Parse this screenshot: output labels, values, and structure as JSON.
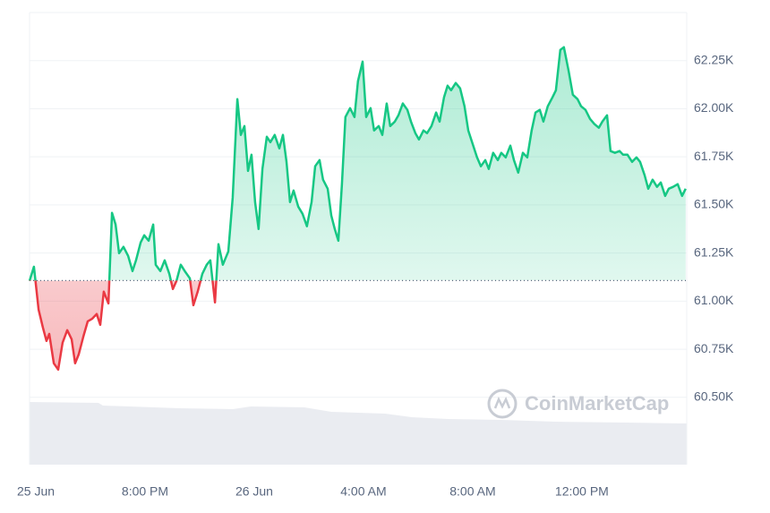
{
  "chart_data": {
    "type": "line",
    "watermark": "CoinMarketCap",
    "baseline": 61107,
    "up_color": "#16c784",
    "down_color": "#ea3943",
    "xlim": [
      -0.23,
      23.84
    ],
    "xticks": [
      {
        "value": 0,
        "label": "25 Jun"
      },
      {
        "value": 4,
        "label": "8:00 PM"
      },
      {
        "value": 8,
        "label": "26 Jun"
      },
      {
        "value": 12,
        "label": "4:00 AM"
      },
      {
        "value": 16,
        "label": "8:00 AM"
      },
      {
        "value": 20,
        "label": "12:00 PM"
      }
    ],
    "ylim": [
      60150,
      62500
    ],
    "yticks": [
      {
        "value": 60500,
        "label": "60.50K"
      },
      {
        "value": 60750,
        "label": "60.75K"
      },
      {
        "value": 61000,
        "label": "61.00K"
      },
      {
        "value": 61250,
        "label": "61.25K"
      },
      {
        "value": 61500,
        "label": "61.50K"
      },
      {
        "value": 61750,
        "label": "61.75K"
      },
      {
        "value": 62000,
        "label": "62.00K"
      },
      {
        "value": 62250,
        "label": "62.25K"
      }
    ],
    "grid": true,
    "x": [
      -0.23,
      -0.07,
      0.1,
      0.26,
      0.39,
      0.49,
      0.66,
      0.82,
      0.98,
      1.15,
      1.31,
      1.44,
      1.57,
      1.74,
      1.9,
      2.07,
      2.23,
      2.36,
      2.49,
      2.66,
      2.79,
      2.92,
      3.05,
      3.21,
      3.38,
      3.54,
      3.67,
      3.84,
      3.97,
      4.13,
      4.3,
      4.39,
      4.56,
      4.72,
      4.89,
      5.02,
      5.15,
      5.31,
      5.48,
      5.64,
      5.77,
      5.93,
      6.1,
      6.26,
      6.39,
      6.56,
      6.69,
      6.85,
      7.05,
      7.21,
      7.38,
      7.51,
      7.64,
      7.77,
      7.9,
      8.03,
      8.16,
      8.3,
      8.46,
      8.59,
      8.75,
      8.92,
      9.05,
      9.18,
      9.31,
      9.44,
      9.61,
      9.77,
      9.93,
      10.1,
      10.23,
      10.39,
      10.52,
      10.69,
      10.82,
      10.95,
      11.08,
      11.21,
      11.34,
      11.51,
      11.67,
      11.8,
      11.97,
      12.1,
      12.26,
      12.39,
      12.56,
      12.69,
      12.85,
      12.98,
      13.15,
      13.28,
      13.44,
      13.61,
      13.74,
      13.9,
      14.03,
      14.2,
      14.33,
      14.49,
      14.66,
      14.79,
      14.95,
      15.08,
      15.21,
      15.38,
      15.54,
      15.7,
      15.84,
      16.0,
      16.16,
      16.3,
      16.46,
      16.59,
      16.75,
      16.92,
      17.05,
      17.21,
      17.38,
      17.51,
      17.67,
      17.84,
      18.0,
      18.16,
      18.3,
      18.46,
      18.59,
      18.75,
      18.92,
      19.05,
      19.21,
      19.34,
      19.51,
      19.67,
      19.84,
      19.97,
      20.13,
      20.3,
      20.46,
      20.62,
      20.75,
      20.92,
      21.05,
      21.21,
      21.38,
      21.51,
      21.67,
      21.84,
      22.0,
      22.13,
      22.3,
      22.43,
      22.59,
      22.75,
      22.89,
      23.05,
      23.18,
      23.34,
      23.51,
      23.67,
      23.8
    ],
    "values": [
      61105,
      61179,
      60956,
      60863,
      60793,
      60830,
      60677,
      60644,
      60784,
      60849,
      60802,
      60677,
      60723,
      60816,
      60895,
      60909,
      60933,
      60877,
      61049,
      60988,
      61459,
      61398,
      61249,
      61282,
      61235,
      61156,
      61212,
      61305,
      61342,
      61314,
      61398,
      61189,
      61156,
      61212,
      61142,
      61063,
      61105,
      61189,
      61151,
      61119,
      60979,
      61049,
      61142,
      61189,
      61212,
      60993,
      61296,
      61189,
      61258,
      61538,
      62050,
      61864,
      61910,
      61677,
      61761,
      61515,
      61375,
      61687,
      61854,
      61826,
      61864,
      61794,
      61864,
      61724,
      61515,
      61575,
      61491,
      61454,
      61389,
      61515,
      61701,
      61733,
      61631,
      61584,
      61445,
      61375,
      61314,
      61608,
      61957,
      62003,
      61957,
      62143,
      62245,
      61957,
      62003,
      61887,
      61910,
      61864,
      62027,
      61910,
      61933,
      61966,
      62027,
      61994,
      61933,
      61873,
      61840,
      61887,
      61873,
      61910,
      61980,
      61933,
      62059,
      62120,
      62096,
      62134,
      62106,
      62013,
      61887,
      61817,
      61747,
      61701,
      61733,
      61687,
      61771,
      61733,
      61771,
      61747,
      61808,
      61733,
      61668,
      61771,
      61747,
      61887,
      61980,
      61994,
      61933,
      62013,
      62059,
      62096,
      62306,
      62320,
      62199,
      62073,
      62050,
      62013,
      61994,
      61947,
      61920,
      61901,
      61933,
      61966,
      61780,
      61771,
      61780,
      61761,
      61761,
      61724,
      61747,
      61724,
      61654,
      61584,
      61631,
      61594,
      61617,
      61547,
      61584,
      61594,
      61608,
      61547,
      61584
    ]
  }
}
